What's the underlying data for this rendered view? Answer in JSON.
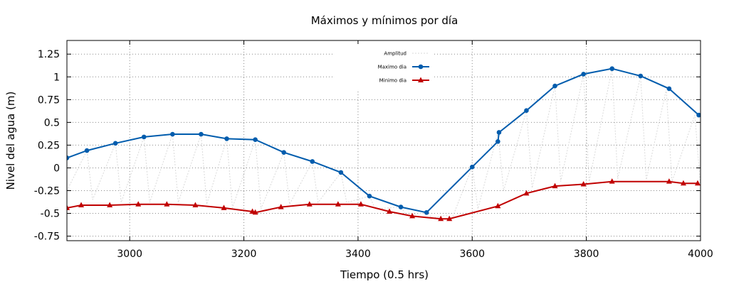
{
  "chart_data": {
    "type": "line",
    "title": "Máximos y mínimos por día",
    "xlabel": "Tiempo (0.5 hrs)",
    "ylabel": "Nivel del agua (m)",
    "xlim": [
      2890,
      4000
    ],
    "ylim": [
      -0.8,
      1.4
    ],
    "xticks": [
      3000,
      3200,
      3400,
      3600,
      3800,
      4000
    ],
    "xtick_labels": [
      "3000",
      "3200",
      "3400",
      "3600",
      "3800",
      "4000"
    ],
    "yticks": [
      -0.75,
      -0.5,
      -0.25,
      0,
      0.25,
      0.5,
      0.75,
      1,
      1.25
    ],
    "ytick_labels": [
      "-0.75",
      "-0.5",
      "-0.25",
      "0",
      "0.25",
      "0.5",
      "0.75",
      "1",
      "1.25"
    ],
    "grid": true,
    "legend_position": "top-center",
    "series": [
      {
        "name": "Amplitud",
        "color": "#d9d9d9",
        "marker": "none",
        "x": [
          2890,
          2925,
          2935,
          2975,
          2985,
          3025,
          3035,
          3075,
          3085,
          3125,
          3135,
          3170,
          3180,
          3220,
          3230,
          3270,
          3280,
          3320,
          3330,
          3370,
          3380,
          3420,
          3430,
          3475,
          3485,
          3520,
          3530,
          3555,
          3565,
          3600,
          3610,
          3645,
          3655,
          3695,
          3705,
          3745,
          3755,
          3795,
          3805,
          3845,
          3855,
          3895,
          3905,
          3940,
          3950,
          3990,
          4000
        ],
        "y": [
          -0.25,
          0.19,
          -0.35,
          0.27,
          -0.38,
          0.34,
          -0.38,
          0.37,
          -0.38,
          0.37,
          -0.4,
          0.32,
          -0.44,
          0.31,
          -0.45,
          0.17,
          -0.4,
          0.07,
          -0.38,
          -0.05,
          -0.38,
          -0.31,
          -0.45,
          -0.43,
          -0.52,
          -0.49,
          -0.55,
          -0.52,
          -0.55,
          0.01,
          -0.45,
          0.39,
          -0.25,
          0.63,
          -0.22,
          0.9,
          -0.15,
          1.03,
          -0.15,
          1.09,
          -0.12,
          1.01,
          -0.13,
          0.86,
          -0.15,
          0.58,
          -0.2
        ]
      },
      {
        "name": "Maximo dia",
        "color": "#005cad",
        "marker": "circle",
        "x": [
          2890,
          2925,
          2975,
          3025,
          3075,
          3125,
          3170,
          3220,
          3270,
          3320,
          3370,
          3420,
          3475,
          3520,
          3600,
          3645,
          3647,
          3695,
          3745,
          3795,
          3845,
          3895,
          3945,
          3997
        ],
        "y": [
          0.11,
          0.19,
          0.27,
          0.34,
          0.37,
          0.37,
          0.32,
          0.31,
          0.17,
          0.07,
          -0.05,
          -0.31,
          -0.43,
          -0.49,
          0.01,
          0.29,
          0.39,
          0.63,
          0.9,
          1.03,
          1.09,
          1.01,
          0.87,
          0.58
        ]
      },
      {
        "name": "Minimo dia",
        "color": "#c00000",
        "marker": "triangle",
        "x": [
          2890,
          2915,
          2965,
          3015,
          3065,
          3115,
          3165,
          3215,
          3220,
          3265,
          3315,
          3365,
          3405,
          3455,
          3495,
          3545,
          3560,
          3645,
          3695,
          3745,
          3795,
          3845,
          3945,
          3970,
          3995
        ],
        "y": [
          -0.44,
          -0.41,
          -0.41,
          -0.4,
          -0.4,
          -0.41,
          -0.44,
          -0.48,
          -0.49,
          -0.43,
          -0.4,
          -0.4,
          -0.4,
          -0.48,
          -0.53,
          -0.56,
          -0.56,
          -0.42,
          -0.28,
          -0.2,
          -0.18,
          -0.15,
          -0.15,
          -0.17,
          -0.17
        ]
      }
    ]
  }
}
